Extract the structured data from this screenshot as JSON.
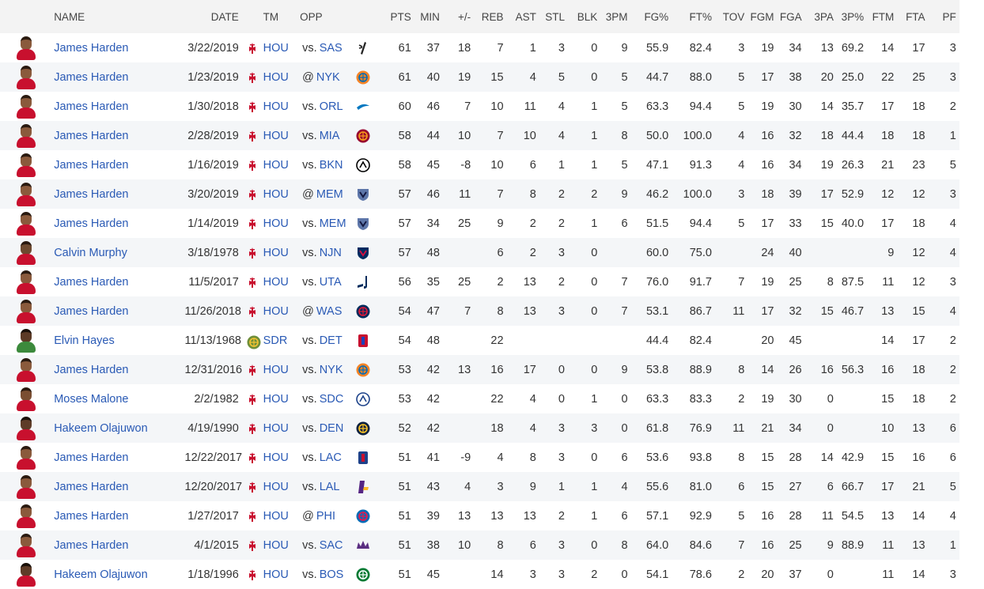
{
  "columns": [
    "NAME",
    "DATE",
    "TM",
    "OPP",
    "PTS",
    "MIN",
    "+/-",
    "REB",
    "AST",
    "STL",
    "BLK",
    "3PM",
    "FG%",
    "FT%",
    "TOV",
    "FGM",
    "FGA",
    "3PA",
    "3P%",
    "FTM",
    "FTA",
    "PF"
  ],
  "colors": {
    "link": "#2a5ab5",
    "header_bg": "#f3f3f3",
    "row_alt": "#f4f6f8"
  },
  "rows": [
    {
      "avatar": "harden",
      "name": "James Harden",
      "date": "3/22/2019",
      "tm": "HOU",
      "tm_logo": "rockets",
      "sep": "vs.",
      "opp": "SAS",
      "opp_logo": "spurs",
      "pts": "61",
      "min": "37",
      "pm": "18",
      "reb": "7",
      "ast": "1",
      "stl": "3",
      "blk": "0",
      "tpm": "9",
      "fgp": "55.9",
      "ftp": "82.4",
      "tov": "3",
      "fgm": "19",
      "fga": "34",
      "tpa": "13",
      "tpp": "69.2",
      "ftm": "14",
      "fta": "17",
      "pf": "3"
    },
    {
      "avatar": "harden",
      "name": "James Harden",
      "date": "1/23/2019",
      "tm": "HOU",
      "tm_logo": "rockets",
      "sep": "@",
      "opp": "NYK",
      "opp_logo": "knicks",
      "pts": "61",
      "min": "40",
      "pm": "19",
      "reb": "15",
      "ast": "4",
      "stl": "5",
      "blk": "0",
      "tpm": "5",
      "fgp": "44.7",
      "ftp": "88.0",
      "tov": "5",
      "fgm": "17",
      "fga": "38",
      "tpa": "20",
      "tpp": "25.0",
      "ftm": "22",
      "fta": "25",
      "pf": "3"
    },
    {
      "avatar": "harden",
      "name": "James Harden",
      "date": "1/30/2018",
      "tm": "HOU",
      "tm_logo": "rockets",
      "sep": "vs.",
      "opp": "ORL",
      "opp_logo": "magic",
      "pts": "60",
      "min": "46",
      "pm": "7",
      "reb": "10",
      "ast": "11",
      "stl": "4",
      "blk": "1",
      "tpm": "5",
      "fgp": "63.3",
      "ftp": "94.4",
      "tov": "5",
      "fgm": "19",
      "fga": "30",
      "tpa": "14",
      "tpp": "35.7",
      "ftm": "17",
      "fta": "18",
      "pf": "2"
    },
    {
      "avatar": "harden",
      "name": "James Harden",
      "date": "2/28/2019",
      "tm": "HOU",
      "tm_logo": "rockets",
      "sep": "vs.",
      "opp": "MIA",
      "opp_logo": "heat",
      "pts": "58",
      "min": "44",
      "pm": "10",
      "reb": "7",
      "ast": "10",
      "stl": "4",
      "blk": "1",
      "tpm": "8",
      "fgp": "50.0",
      "ftp": "100.0",
      "tov": "4",
      "fgm": "16",
      "fga": "32",
      "tpa": "18",
      "tpp": "44.4",
      "ftm": "18",
      "fta": "18",
      "pf": "1"
    },
    {
      "avatar": "harden",
      "name": "James Harden",
      "date": "1/16/2019",
      "tm": "HOU",
      "tm_logo": "rockets",
      "sep": "vs.",
      "opp": "BKN",
      "opp_logo": "nets",
      "pts": "58",
      "min": "45",
      "pm": "-8",
      "reb": "10",
      "ast": "6",
      "stl": "1",
      "blk": "1",
      "tpm": "5",
      "fgp": "47.1",
      "ftp": "91.3",
      "tov": "4",
      "fgm": "16",
      "fga": "34",
      "tpa": "19",
      "tpp": "26.3",
      "ftm": "21",
      "fta": "23",
      "pf": "5"
    },
    {
      "avatar": "harden",
      "name": "James Harden",
      "date": "3/20/2019",
      "tm": "HOU",
      "tm_logo": "rockets",
      "sep": "@",
      "opp": "MEM",
      "opp_logo": "grizzlies",
      "pts": "57",
      "min": "46",
      "pm": "11",
      "reb": "7",
      "ast": "8",
      "stl": "2",
      "blk": "2",
      "tpm": "9",
      "fgp": "46.2",
      "ftp": "100.0",
      "tov": "3",
      "fgm": "18",
      "fga": "39",
      "tpa": "17",
      "tpp": "52.9",
      "ftm": "12",
      "fta": "12",
      "pf": "3"
    },
    {
      "avatar": "harden",
      "name": "James Harden",
      "date": "1/14/2019",
      "tm": "HOU",
      "tm_logo": "rockets",
      "sep": "vs.",
      "opp": "MEM",
      "opp_logo": "grizzlies",
      "pts": "57",
      "min": "34",
      "pm": "25",
      "reb": "9",
      "ast": "2",
      "stl": "2",
      "blk": "1",
      "tpm": "6",
      "fgp": "51.5",
      "ftp": "94.4",
      "tov": "5",
      "fgm": "17",
      "fga": "33",
      "tpa": "15",
      "tpp": "40.0",
      "ftm": "17",
      "fta": "18",
      "pf": "4"
    },
    {
      "avatar": "murphy",
      "name": "Calvin Murphy",
      "date": "3/18/1978",
      "tm": "HOU",
      "tm_logo": "rockets",
      "sep": "vs.",
      "opp": "NJN",
      "opp_logo": "nets-old",
      "pts": "57",
      "min": "48",
      "pm": "",
      "reb": "6",
      "ast": "2",
      "stl": "3",
      "blk": "0",
      "tpm": "",
      "fgp": "60.0",
      "ftp": "75.0",
      "tov": "",
      "fgm": "24",
      "fga": "40",
      "tpa": "",
      "tpp": "",
      "ftm": "9",
      "fta": "12",
      "pf": "4"
    },
    {
      "avatar": "harden",
      "name": "James Harden",
      "date": "11/5/2017",
      "tm": "HOU",
      "tm_logo": "rockets",
      "sep": "vs.",
      "opp": "UTA",
      "opp_logo": "jazz",
      "pts": "56",
      "min": "35",
      "pm": "25",
      "reb": "2",
      "ast": "13",
      "stl": "2",
      "blk": "0",
      "tpm": "7",
      "fgp": "76.0",
      "ftp": "91.7",
      "tov": "7",
      "fgm": "19",
      "fga": "25",
      "tpa": "8",
      "tpp": "87.5",
      "ftm": "11",
      "fta": "12",
      "pf": "3"
    },
    {
      "avatar": "harden",
      "name": "James Harden",
      "date": "11/26/2018",
      "tm": "HOU",
      "tm_logo": "rockets",
      "sep": "@",
      "opp": "WAS",
      "opp_logo": "wizards",
      "pts": "54",
      "min": "47",
      "pm": "7",
      "reb": "8",
      "ast": "13",
      "stl": "3",
      "blk": "0",
      "tpm": "7",
      "fgp": "53.1",
      "ftp": "86.7",
      "tov": "11",
      "fgm": "17",
      "fga": "32",
      "tpa": "15",
      "tpp": "46.7",
      "ftm": "13",
      "fta": "15",
      "pf": "4"
    },
    {
      "avatar": "hayes",
      "name": "Elvin Hayes",
      "date": "11/13/1968",
      "tm": "SDR",
      "tm_logo": "sd-rockets",
      "sep": "vs.",
      "opp": "DET",
      "opp_logo": "pistons",
      "pts": "54",
      "min": "48",
      "pm": "",
      "reb": "22",
      "ast": "",
      "stl": "",
      "blk": "",
      "tpm": "",
      "fgp": "44.4",
      "ftp": "82.4",
      "tov": "",
      "fgm": "20",
      "fga": "45",
      "tpa": "",
      "tpp": "",
      "ftm": "14",
      "fta": "17",
      "pf": "2"
    },
    {
      "avatar": "harden",
      "name": "James Harden",
      "date": "12/31/2016",
      "tm": "HOU",
      "tm_logo": "rockets",
      "sep": "vs.",
      "opp": "NYK",
      "opp_logo": "knicks",
      "pts": "53",
      "min": "42",
      "pm": "13",
      "reb": "16",
      "ast": "17",
      "stl": "0",
      "blk": "0",
      "tpm": "9",
      "fgp": "53.8",
      "ftp": "88.9",
      "tov": "8",
      "fgm": "14",
      "fga": "26",
      "tpa": "16",
      "tpp": "56.3",
      "ftm": "16",
      "fta": "18",
      "pf": "2"
    },
    {
      "avatar": "malone",
      "name": "Moses Malone",
      "date": "2/2/1982",
      "tm": "HOU",
      "tm_logo": "rockets",
      "sep": "vs.",
      "opp": "SDC",
      "opp_logo": "clippers-old",
      "pts": "53",
      "min": "42",
      "pm": "",
      "reb": "22",
      "ast": "4",
      "stl": "0",
      "blk": "1",
      "tpm": "0",
      "fgp": "63.3",
      "ftp": "83.3",
      "tov": "2",
      "fgm": "19",
      "fga": "30",
      "tpa": "0",
      "tpp": "",
      "ftm": "15",
      "fta": "18",
      "pf": "2"
    },
    {
      "avatar": "olajuwon",
      "name": "Hakeem Olajuwon",
      "date": "4/19/1990",
      "tm": "HOU",
      "tm_logo": "rockets",
      "sep": "vs.",
      "opp": "DEN",
      "opp_logo": "nuggets",
      "pts": "52",
      "min": "42",
      "pm": "",
      "reb": "18",
      "ast": "4",
      "stl": "3",
      "blk": "3",
      "tpm": "0",
      "fgp": "61.8",
      "ftp": "76.9",
      "tov": "11",
      "fgm": "21",
      "fga": "34",
      "tpa": "0",
      "tpp": "",
      "ftm": "10",
      "fta": "13",
      "pf": "6"
    },
    {
      "avatar": "harden",
      "name": "James Harden",
      "date": "12/22/2017",
      "tm": "HOU",
      "tm_logo": "rockets",
      "sep": "vs.",
      "opp": "LAC",
      "opp_logo": "clippers",
      "pts": "51",
      "min": "41",
      "pm": "-9",
      "reb": "4",
      "ast": "8",
      "stl": "3",
      "blk": "0",
      "tpm": "6",
      "fgp": "53.6",
      "ftp": "93.8",
      "tov": "8",
      "fgm": "15",
      "fga": "28",
      "tpa": "14",
      "tpp": "42.9",
      "ftm": "15",
      "fta": "16",
      "pf": "6"
    },
    {
      "avatar": "harden",
      "name": "James Harden",
      "date": "12/20/2017",
      "tm": "HOU",
      "tm_logo": "rockets",
      "sep": "vs.",
      "opp": "LAL",
      "opp_logo": "lakers",
      "pts": "51",
      "min": "43",
      "pm": "4",
      "reb": "3",
      "ast": "9",
      "stl": "1",
      "blk": "1",
      "tpm": "4",
      "fgp": "55.6",
      "ftp": "81.0",
      "tov": "6",
      "fgm": "15",
      "fga": "27",
      "tpa": "6",
      "tpp": "66.7",
      "ftm": "17",
      "fta": "21",
      "pf": "5"
    },
    {
      "avatar": "harden",
      "name": "James Harden",
      "date": "1/27/2017",
      "tm": "HOU",
      "tm_logo": "rockets",
      "sep": "@",
      "opp": "PHI",
      "opp_logo": "76ers",
      "pts": "51",
      "min": "39",
      "pm": "13",
      "reb": "13",
      "ast": "13",
      "stl": "2",
      "blk": "1",
      "tpm": "6",
      "fgp": "57.1",
      "ftp": "92.9",
      "tov": "5",
      "fgm": "16",
      "fga": "28",
      "tpa": "11",
      "tpp": "54.5",
      "ftm": "13",
      "fta": "14",
      "pf": "4"
    },
    {
      "avatar": "harden",
      "name": "James Harden",
      "date": "4/1/2015",
      "tm": "HOU",
      "tm_logo": "rockets",
      "sep": "vs.",
      "opp": "SAC",
      "opp_logo": "kings",
      "pts": "51",
      "min": "38",
      "pm": "10",
      "reb": "8",
      "ast": "6",
      "stl": "3",
      "blk": "0",
      "tpm": "8",
      "fgp": "64.0",
      "ftp": "84.6",
      "tov": "7",
      "fgm": "16",
      "fga": "25",
      "tpa": "9",
      "tpp": "88.9",
      "ftm": "11",
      "fta": "13",
      "pf": "1"
    },
    {
      "avatar": "olajuwon",
      "name": "Hakeem Olajuwon",
      "date": "1/18/1996",
      "tm": "HOU",
      "tm_logo": "rockets",
      "sep": "vs.",
      "opp": "BOS",
      "opp_logo": "celtics",
      "pts": "51",
      "min": "45",
      "pm": "",
      "reb": "14",
      "ast": "3",
      "stl": "3",
      "blk": "2",
      "tpm": "0",
      "fgp": "54.1",
      "ftp": "78.6",
      "tov": "2",
      "fgm": "20",
      "fga": "37",
      "tpa": "0",
      "tpp": "",
      "ftm": "11",
      "fta": "14",
      "pf": "3"
    }
  ]
}
